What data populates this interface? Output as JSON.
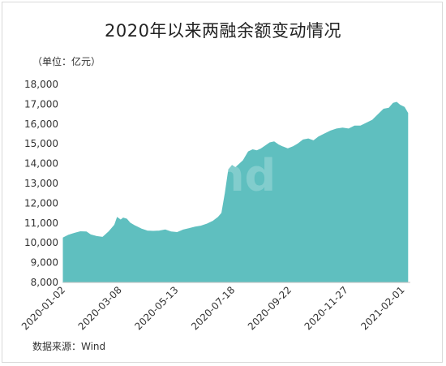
{
  "chart_data": {
    "type": "area",
    "title": "2020年以来两融余额变动情况",
    "unit_label": "（单位：亿元）",
    "source": "数据来源：Wind",
    "watermark": "Wind",
    "color": "#5fbfbf",
    "ylim": [
      8000,
      18000
    ],
    "yticks": [
      8000,
      9000,
      10000,
      11000,
      12000,
      13000,
      14000,
      15000,
      16000,
      17000,
      18000
    ],
    "ytick_labels": [
      "8,000",
      "9,000",
      "10,000",
      "11,000",
      "12,000",
      "13,000",
      "14,000",
      "15,000",
      "16,000",
      "17,000",
      "18,000"
    ],
    "xticks": [
      "2020-01-02",
      "2020-03-08",
      "2020-05-13",
      "2020-07-18",
      "2020-09-22",
      "2020-11-27",
      "2021-02-01"
    ],
    "xlim": [
      "2020-01-02",
      "2021-02-10"
    ],
    "grid": false,
    "points": [
      [
        "2020-01-02",
        10250
      ],
      [
        "2020-01-08",
        10380
      ],
      [
        "2020-01-15",
        10480
      ],
      [
        "2020-01-22",
        10560
      ],
      [
        "2020-01-29",
        10550
      ],
      [
        "2020-02-03",
        10400
      ],
      [
        "2020-02-10",
        10320
      ],
      [
        "2020-02-17",
        10280
      ],
      [
        "2020-02-24",
        10550
      ],
      [
        "2020-03-02",
        10900
      ],
      [
        "2020-03-05",
        11280
      ],
      [
        "2020-03-09",
        11150
      ],
      [
        "2020-03-12",
        11250
      ],
      [
        "2020-03-16",
        11200
      ],
      [
        "2020-03-20",
        11000
      ],
      [
        "2020-03-26",
        10850
      ],
      [
        "2020-04-02",
        10700
      ],
      [
        "2020-04-09",
        10600
      ],
      [
        "2020-04-16",
        10580
      ],
      [
        "2020-04-23",
        10600
      ],
      [
        "2020-04-30",
        10650
      ],
      [
        "2020-05-07",
        10550
      ],
      [
        "2020-05-14",
        10520
      ],
      [
        "2020-05-21",
        10650
      ],
      [
        "2020-05-28",
        10720
      ],
      [
        "2020-06-04",
        10800
      ],
      [
        "2020-06-11",
        10850
      ],
      [
        "2020-06-18",
        10950
      ],
      [
        "2020-06-25",
        11100
      ],
      [
        "2020-07-01",
        11300
      ],
      [
        "2020-07-05",
        11500
      ],
      [
        "2020-07-09",
        12500
      ],
      [
        "2020-07-13",
        13700
      ],
      [
        "2020-07-17",
        13900
      ],
      [
        "2020-07-21",
        13800
      ],
      [
        "2020-07-25",
        13950
      ],
      [
        "2020-07-30",
        14150
      ],
      [
        "2020-08-05",
        14600
      ],
      [
        "2020-08-10",
        14700
      ],
      [
        "2020-08-15",
        14650
      ],
      [
        "2020-08-20",
        14750
      ],
      [
        "2020-08-25",
        14900
      ],
      [
        "2020-08-30",
        15050
      ],
      [
        "2020-09-04",
        15100
      ],
      [
        "2020-09-09",
        14950
      ],
      [
        "2020-09-14",
        14850
      ],
      [
        "2020-09-20",
        14750
      ],
      [
        "2020-09-26",
        14850
      ],
      [
        "2020-10-02",
        15000
      ],
      [
        "2020-10-08",
        15200
      ],
      [
        "2020-10-14",
        15250
      ],
      [
        "2020-10-20",
        15150
      ],
      [
        "2020-10-26",
        15350
      ],
      [
        "2020-11-02",
        15500
      ],
      [
        "2020-11-09",
        15650
      ],
      [
        "2020-11-16",
        15750
      ],
      [
        "2020-11-23",
        15800
      ],
      [
        "2020-11-30",
        15750
      ],
      [
        "2020-12-07",
        15900
      ],
      [
        "2020-12-14",
        15900
      ],
      [
        "2020-12-21",
        16050
      ],
      [
        "2020-12-28",
        16200
      ],
      [
        "2021-01-04",
        16500
      ],
      [
        "2021-01-10",
        16750
      ],
      [
        "2021-01-16",
        16800
      ],
      [
        "2021-01-21",
        17050
      ],
      [
        "2021-01-25",
        17100
      ],
      [
        "2021-01-29",
        16950
      ],
      [
        "2021-02-03",
        16850
      ],
      [
        "2021-02-07",
        16550
      ]
    ]
  }
}
